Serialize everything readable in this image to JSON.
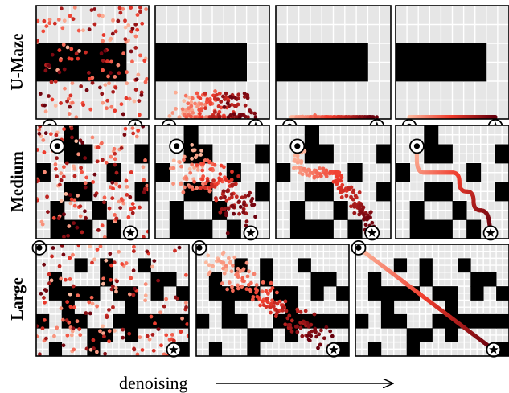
{
  "figure": {
    "caption": "denoising",
    "colors": {
      "wall": "#000000",
      "floor": "#e6e6e6",
      "grid": "#ffffff",
      "traj_start": "#fcbba1",
      "traj_mid": "#ef3b2c",
      "traj_end": "#67000d"
    },
    "rows": [
      {
        "label": "U-Maze",
        "maze": [
          "00000",
          "11110",
          "00000"
        ],
        "start": [
          3.2,
          0.6
        ],
        "goal": [
          3.2,
          4.4
        ],
        "stages": [
          0.0,
          0.45,
          0.72,
          1.0
        ]
      },
      {
        "label": "Medium",
        "maze": [
          "00100000",
          "00110001",
          "10000100",
          "00110001",
          "01001000",
          "01110100"
        ],
        "start": [
          1.1,
          1.5
        ],
        "goal": [
          5.7,
          6.7
        ],
        "stages": [
          0.0,
          0.45,
          0.72,
          1.0
        ]
      },
      {
        "label": "Large",
        "maze": [
          "000000000000",
          "000101001000",
          "010001000110",
          "011110110101",
          "001000010000",
          "101100111111",
          "000011010000",
          "010010000001"
        ],
        "start": [
          0.25,
          0.25
        ],
        "goal": [
          7.55,
          10.8
        ],
        "stages": [
          0.0,
          0.55,
          1.0
        ]
      }
    ]
  }
}
